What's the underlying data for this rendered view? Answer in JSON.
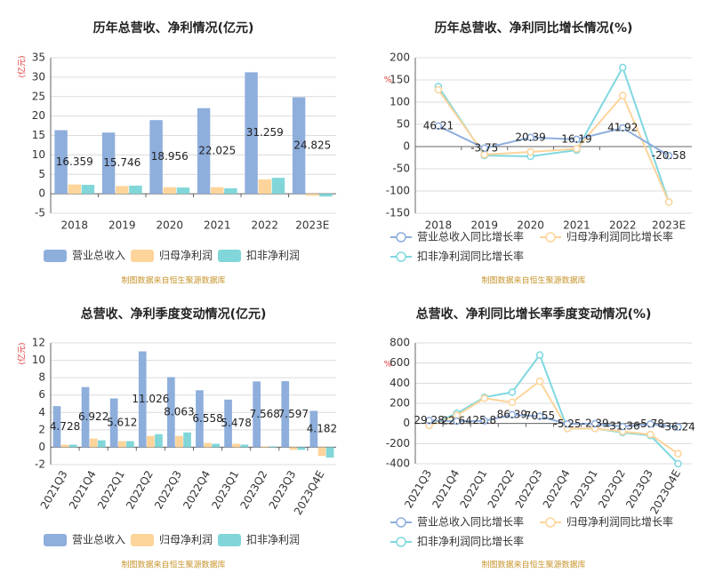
{
  "chart_data": [
    {
      "type": "bar",
      "title": "历年总营收、净利情况(亿元)",
      "unit_label": "(亿元)",
      "source": "制图数据来自恒生聚源数据库",
      "categories": [
        "2018",
        "2019",
        "2020",
        "2021",
        "2022",
        "2023E"
      ],
      "series": [
        {
          "name": "营业总收入",
          "color": "#8eaedc",
          "labels": true,
          "values": [
            16.359,
            15.746,
            18.956,
            22.025,
            31.259,
            24.825
          ]
        },
        {
          "name": "归母净利润",
          "color": "#fdd49a",
          "values": [
            2.4,
            2.0,
            1.7,
            1.7,
            3.7,
            -0.5
          ]
        },
        {
          "name": "扣非净利润",
          "color": "#80d6d8",
          "values": [
            2.3,
            2.1,
            1.6,
            1.4,
            4.1,
            -0.7
          ]
        }
      ],
      "ylim": [
        -5,
        35
      ],
      "yticks": [
        -5,
        0,
        5,
        10,
        15,
        20,
        25,
        30,
        35
      ],
      "grid": true,
      "legend": "bottom"
    },
    {
      "type": "line",
      "title": "历年总营收、净利同比增长情况(%)",
      "unit_label": "%",
      "source": "制图数据来自恒生聚源数据库",
      "categories": [
        "2018",
        "2019",
        "2020",
        "2021",
        "2022",
        "2023E"
      ],
      "series": [
        {
          "name": "营业总收入同比增长率",
          "color": "#8eaedc",
          "labels": true,
          "values": [
            46.21,
            -3.75,
            20.39,
            16.19,
            41.92,
            -20.58
          ]
        },
        {
          "name": "归母净利润同比增长率",
          "color": "#fdd49a",
          "values": [
            128,
            -18,
            -12,
            -5,
            115,
            -125
          ]
        },
        {
          "name": "扣非净利润同比增长率",
          "color": "#7fd8e0",
          "values": [
            135,
            -20,
            -22,
            -8,
            178,
            -125
          ]
        }
      ],
      "ylim": [
        -150,
        200
      ],
      "yticks": [
        -150,
        -100,
        -50,
        0,
        50,
        100,
        150,
        200
      ],
      "grid": true,
      "legend": "bottom"
    },
    {
      "type": "bar",
      "title": "总营收、净利季度变动情况(亿元)",
      "unit_label": "(亿元)",
      "source": "制图数据来自恒生聚源数据库",
      "categories": [
        "2021Q3",
        "2021Q4",
        "2022Q1",
        "2022Q2",
        "2022Q3",
        "2022Q4",
        "2023Q1",
        "2023Q2",
        "2023Q3",
        "2023Q4E"
      ],
      "series": [
        {
          "name": "营业总收入",
          "color": "#8eaedc",
          "labels": true,
          "values": [
            4.728,
            6.922,
            5.612,
            11.026,
            8.063,
            6.558,
            5.478,
            7.568,
            7.597,
            4.182
          ]
        },
        {
          "name": "归母净利润",
          "color": "#fdd49a",
          "values": [
            0.3,
            1.0,
            0.7,
            1.3,
            1.3,
            0.5,
            0.4,
            0.1,
            -0.3,
            -1.0
          ]
        },
        {
          "name": "扣非净利润",
          "color": "#80d6d8",
          "values": [
            0.3,
            0.8,
            0.7,
            1.5,
            1.7,
            0.4,
            0.3,
            0.1,
            -0.3,
            -1.2
          ]
        }
      ],
      "ylim": [
        -2,
        12
      ],
      "yticks": [
        -2,
        0,
        2,
        4,
        6,
        8,
        10,
        12
      ],
      "grid": true,
      "legend": "bottom"
    },
    {
      "type": "line",
      "title": "总营收、净利同比增长率季度变动情况(%)",
      "unit_label": "%",
      "source": "制图数据来自恒生聚源数据库",
      "categories": [
        "2021Q3",
        "2021Q4",
        "2022Q1",
        "2022Q2",
        "2022Q3",
        "2022Q4",
        "2023Q1",
        "2023Q2",
        "2023Q3",
        "2023Q4E"
      ],
      "series": [
        {
          "name": "营业总收入同比增长率",
          "color": "#8eaedc",
          "labels": true,
          "values": [
            29.28,
            22.64,
            25.8,
            86.39,
            70.55,
            -5.25,
            -2.39,
            -31.36,
            -5.78,
            -36.24
          ]
        },
        {
          "name": "归母净利润同比增长率",
          "color": "#fdd49a",
          "values": [
            -20,
            80,
            250,
            210,
            420,
            -50,
            -50,
            -80,
            -110,
            -300
          ]
        },
        {
          "name": "扣非净利润同比增长率",
          "color": "#7fd8e0",
          "values": [
            -20,
            100,
            260,
            310,
            680,
            -50,
            -50,
            -90,
            -120,
            -400
          ]
        }
      ],
      "ylim": [
        -400,
        800
      ],
      "yticks": [
        -400,
        -200,
        0,
        200,
        400,
        600,
        800
      ],
      "grid": true,
      "legend": "bottom"
    }
  ]
}
